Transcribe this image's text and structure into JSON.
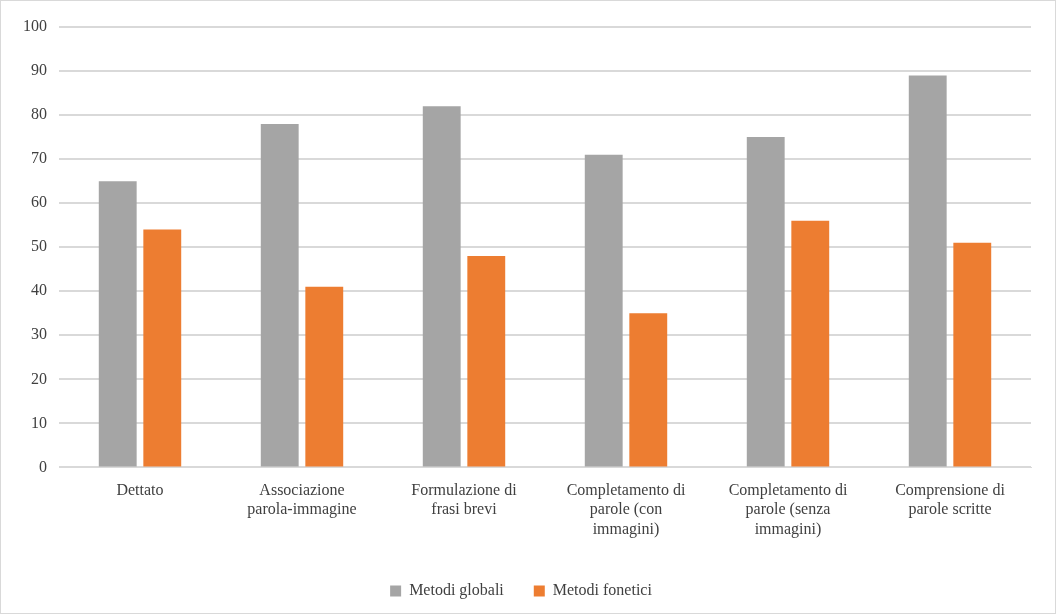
{
  "chart_data": {
    "type": "bar",
    "categories": [
      "Dettato",
      "Associazione parola-immagine",
      "Formulazione di frasi brevi",
      "Completamento di parole (con immagini)",
      "Completamento di parole (senza immagini)",
      "Comprensione di parole scritte"
    ],
    "series": [
      {
        "name": "Metodi globali",
        "color": "#a5a5a5",
        "values": [
          65,
          78,
          82,
          71,
          75,
          89
        ]
      },
      {
        "name": "Metodi fonetici",
        "color": "#ed7d31",
        "values": [
          54,
          41,
          48,
          35,
          56,
          51
        ]
      }
    ],
    "ylim": [
      0,
      100
    ],
    "yticks": [
      0,
      10,
      20,
      30,
      40,
      50,
      60,
      70,
      80,
      90,
      100
    ],
    "grid": "y",
    "legend": "bottom"
  }
}
